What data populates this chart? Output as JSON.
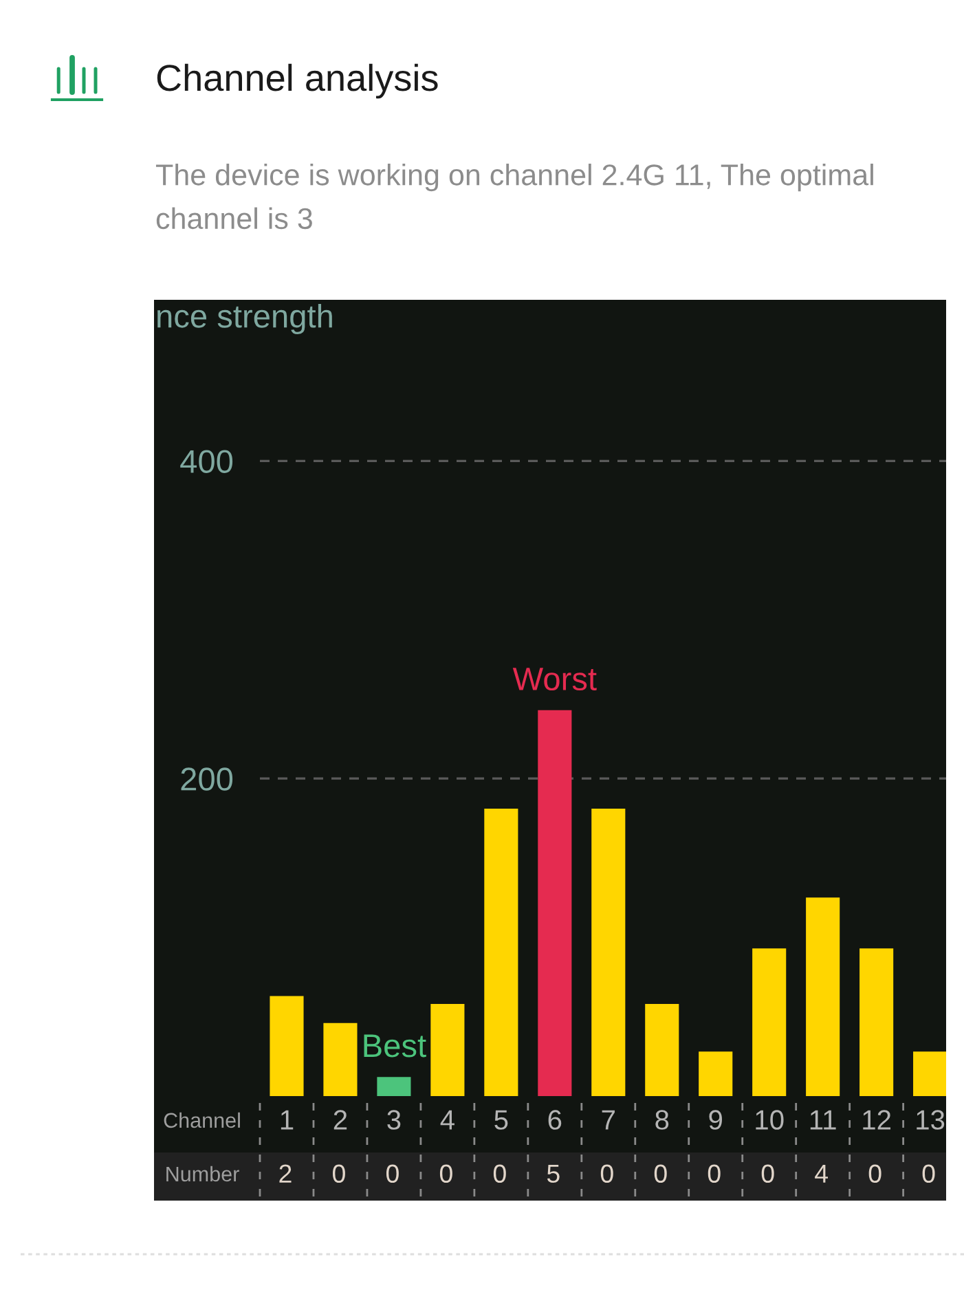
{
  "chart_data": {
    "type": "bar",
    "title": "Channel analysis",
    "subtitle": "The device is working on channel 2.4G 11, The optimal channel is 3",
    "ylabel": "nce strength",
    "xlabel": "Channel",
    "x": [
      1,
      2,
      3,
      4,
      5,
      6,
      7,
      8,
      9,
      10,
      11,
      12,
      13
    ],
    "values": [
      63,
      46,
      12,
      58,
      181,
      243,
      181,
      58,
      28,
      93,
      125,
      93,
      28
    ],
    "colors": [
      "#ffd600",
      "#ffd600",
      "#4cc47c",
      "#ffd600",
      "#ffd600",
      "#e52b50",
      "#ffd600",
      "#ffd600",
      "#ffd600",
      "#ffd600",
      "#ffd600",
      "#ffd600",
      "#ffd600"
    ],
    "xlim": [
      0.5,
      13.3
    ],
    "xticks": [
      1,
      2,
      3,
      4,
      5,
      6,
      7,
      8,
      9,
      10,
      11,
      12,
      13
    ],
    "ylim": [
      0,
      500
    ],
    "yticks": [
      200,
      400
    ],
    "grid": "y",
    "annotations": [
      {
        "text": "Best",
        "x": 3,
        "y": 12
      },
      {
        "text": "Worst",
        "x": 6,
        "y": 243
      },
      "Number",
      "2",
      "0",
      "0",
      "0",
      "0",
      "5",
      "0",
      "0",
      "0",
      "0",
      "4",
      "0",
      "0"
    ]
  }
}
